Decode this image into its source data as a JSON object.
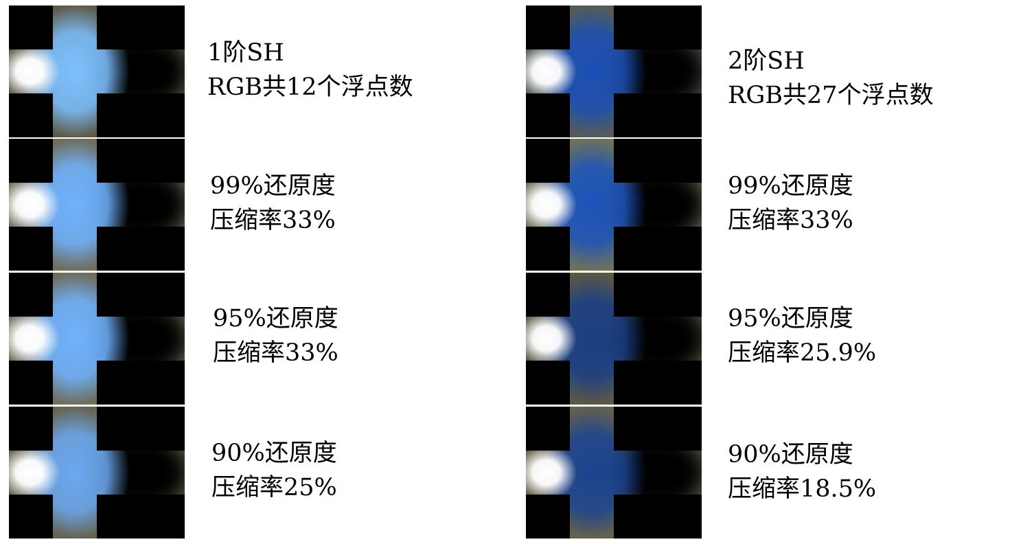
{
  "columns": [
    {
      "id": "left",
      "rows": [
        {
          "line1": "1阶SH",
          "line2": "RGB共12个浮点数",
          "glow": "#7cc0ff",
          "outer": "#a9a88a",
          "core": "#ffffff"
        },
        {
          "line1": "99%还原度",
          "line2": "压缩率33%",
          "glow": "#6fb2ff",
          "outer": "#c9c9a6",
          "core": "#ffffff"
        },
        {
          "line1": "95%还原度",
          "line2": "压缩率33%",
          "glow": "#6fb2ff",
          "outer": "#c9c9a6",
          "core": "#ffffff"
        },
        {
          "line1": "90%还原度",
          "line2": "压缩率25%",
          "glow": "#6aa8f0",
          "outer": "#b9b693",
          "core": "#ffffff"
        }
      ]
    },
    {
      "id": "right",
      "rows": [
        {
          "line1": "2阶SH",
          "line2": "RGB共27个浮点数",
          "glow": "#1b4fb5",
          "outer": "#9aa79a",
          "core": "#ffffff"
        },
        {
          "line1": "99%还原度",
          "line2": "压缩率33%",
          "glow": "#1c54bb",
          "outer": "#c9cfa2",
          "core": "#ffffff"
        },
        {
          "line1": "95%还原度",
          "line2": "压缩率25.9%",
          "glow": "#1a3f86",
          "outer": "#a7a07e",
          "core": "#ffffff"
        },
        {
          "line1": "90%还原度",
          "line2": "压缩率18.5%",
          "glow": "#1b4490",
          "outer": "#b8b18c",
          "core": "#ffffff"
        }
      ]
    }
  ]
}
